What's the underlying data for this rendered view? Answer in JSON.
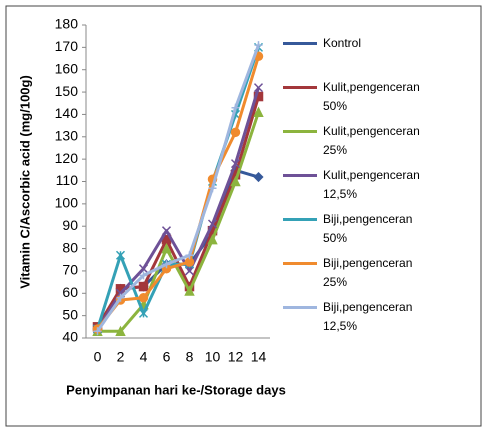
{
  "chart_data": {
    "type": "line",
    "y_label": "Vitamin C/Ascorbic acid (mg/100g)",
    "x_label": "Penyimpanan hari ke-/Storage days",
    "categories": [
      "0",
      "2",
      "4",
      "6",
      "8",
      "10",
      "12",
      "14"
    ],
    "ylim": [
      40,
      180
    ],
    "yticks": [
      40,
      50,
      60,
      70,
      80,
      90,
      100,
      110,
      120,
      130,
      140,
      150,
      160,
      170,
      180
    ],
    "series": [
      {
        "name": "Kontrol",
        "color": "#36599a",
        "values": [
          44,
          62,
          63,
          73,
          73,
          87,
          115,
          112
        ]
      },
      {
        "name": "Kulit,pengenceran 50%",
        "color": "#a3373b",
        "values": [
          45,
          62,
          63,
          84,
          63,
          88,
          113,
          148
        ]
      },
      {
        "name": "Kulit,pengenceran 25%",
        "color": "#8cb43e",
        "values": [
          43,
          43,
          55,
          80,
          61,
          84,
          110,
          141
        ]
      },
      {
        "name": "Kulit,pengenceran 12,5%",
        "color": "#6e5197",
        "values": [
          44,
          60,
          71,
          88,
          70,
          91,
          118,
          152
        ]
      },
      {
        "name": "Biji,pengenceran 50%",
        "color": "#34a1b6",
        "values": [
          44,
          77,
          51,
          73,
          73,
          110,
          140,
          170
        ]
      },
      {
        "name": "Biji,pengenceran 25%",
        "color": "#f08b2e",
        "values": [
          44,
          57,
          58,
          71,
          74,
          111,
          132,
          166
        ]
      },
      {
        "name": "Biji,pengenceran 12,5%",
        "color": "#9fb6df",
        "values": [
          43,
          58,
          68,
          73,
          77,
          107,
          143,
          171
        ]
      }
    ]
  }
}
